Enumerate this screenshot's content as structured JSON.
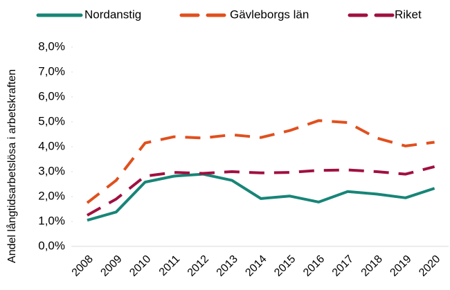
{
  "chart_data": {
    "type": "line",
    "y_label": "Andel långtidsarbetslösa i arbetskraften",
    "categories": [
      "2008",
      "2009",
      "2010",
      "2011",
      "2012",
      "2013",
      "2014",
      "2015",
      "2016",
      "2017",
      "2018",
      "2019",
      "2020"
    ],
    "series": [
      {
        "name": "Nordanstig",
        "color": "#178577",
        "dash": "none",
        "values": [
          1.05,
          1.38,
          2.58,
          2.82,
          2.9,
          2.65,
          1.92,
          2.02,
          1.78,
          2.2,
          2.1,
          1.95,
          2.33
        ]
      },
      {
        "name": "Gävleborgs län",
        "color": "#e0501e",
        "dash": "22 14",
        "values": [
          1.75,
          2.65,
          4.15,
          4.4,
          4.35,
          4.48,
          4.37,
          4.65,
          5.05,
          4.97,
          4.35,
          4.03,
          4.18
        ]
      },
      {
        "name": "Riket",
        "color": "#a0103f",
        "dash": "22 14",
        "values": [
          1.25,
          1.9,
          2.82,
          2.97,
          2.93,
          3.0,
          2.95,
          2.97,
          3.05,
          3.07,
          3.0,
          2.9,
          3.2
        ]
      }
    ],
    "ylim": [
      0,
      8
    ],
    "yticks": [
      {
        "value": 0,
        "label": "0,0%"
      },
      {
        "value": 1,
        "label": "1,0%"
      },
      {
        "value": 2,
        "label": "2,0%"
      },
      {
        "value": 3,
        "label": "3,0%"
      },
      {
        "value": 4,
        "label": "4,0%"
      },
      {
        "value": 5,
        "label": "5,0%"
      },
      {
        "value": 6,
        "label": "6,0%"
      },
      {
        "value": 7,
        "label": "7,0%"
      },
      {
        "value": 8,
        "label": "8,0%"
      }
    ],
    "legend": "top"
  }
}
